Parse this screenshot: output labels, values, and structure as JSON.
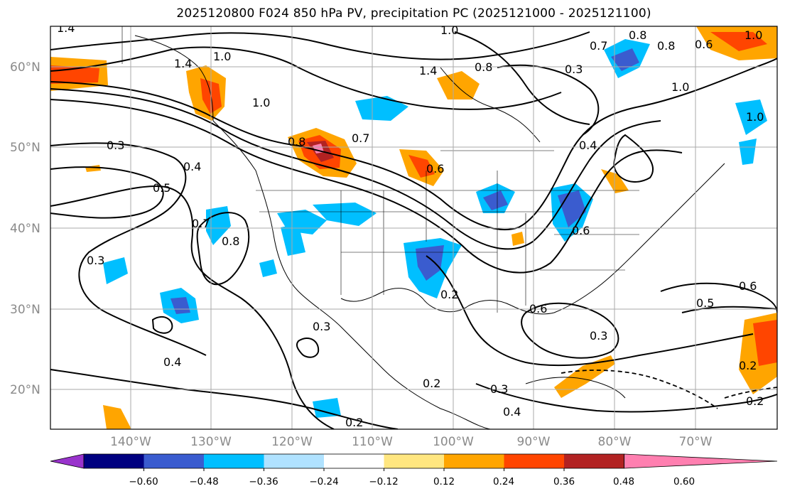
{
  "title": "2025120800 F024 850 hPa PV, precipitation PC (2025121000 - 2025121100)",
  "latitude_labels": [
    "60°N",
    "50°N",
    "40°N",
    "30°N",
    "20°N"
  ],
  "longitude_labels": [
    "140°W",
    "130°W",
    "120°W",
    "110°W",
    "100°W",
    "90°W",
    "80°W",
    "70°W"
  ],
  "colorbar": {
    "ticks": [
      "−0.60",
      "−0.48",
      "−0.36",
      "−0.24",
      "−0.12",
      "0.12",
      "0.24",
      "0.36",
      "0.48",
      "0.60"
    ],
    "colors": [
      "#9933cc",
      "#000080",
      "#3a5ccf",
      "#00bfff",
      "#b0e2ff",
      "#ffffff",
      "#ffe680",
      "#ffa500",
      "#ff4500",
      "#b22222",
      "#ff7fb0"
    ]
  },
  "contour_labels": [
    "1.4",
    "1.0",
    "1.4",
    "1.0",
    "0.8",
    "0.7",
    "0.8",
    "0.3",
    "1.0",
    "0.8",
    "1.4",
    "1.0",
    "0.6",
    "0.7",
    "0.6",
    "1.0",
    "0.3",
    "0.4",
    "0.5",
    "0.7",
    "0.8",
    "0.3",
    "0.4",
    "0.6",
    "0.5",
    "0.6",
    "0.6",
    "0.3",
    "0.3",
    "0.4",
    "0.2",
    "0.3",
    "0.2",
    "0.6",
    "0.2",
    "0.4",
    "0.2",
    "0.2",
    "0.8",
    "1.0"
  ]
}
